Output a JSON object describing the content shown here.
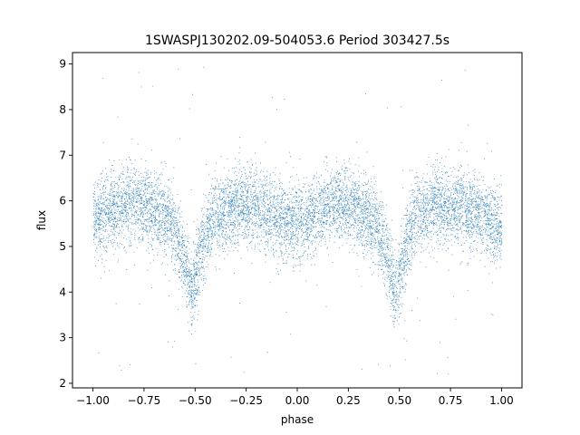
{
  "chart_data": {
    "type": "scatter",
    "title": "1SWASPJ130202.09-504053.6 Period 303427.5s",
    "xlabel": "phase",
    "ylabel": "flux",
    "xlim": [
      -1.1,
      1.1
    ],
    "ylim": [
      1.9,
      9.25
    ],
    "xticks": [
      -1.0,
      -0.75,
      -0.5,
      -0.25,
      0.0,
      0.25,
      0.5,
      0.75,
      1.0
    ],
    "xtick_labels": [
      "−1.00",
      "−0.75",
      "−0.50",
      "−0.25",
      "0.00",
      "0.25",
      "0.50",
      "0.75",
      "1.00"
    ],
    "yticks": [
      2,
      3,
      4,
      5,
      6,
      7,
      8,
      9
    ],
    "ytick_labels": [
      "2",
      "3",
      "4",
      "5",
      "6",
      "7",
      "8",
      "9"
    ],
    "grid": false,
    "point_color": "#1f77b4",
    "description_points": {
      "baseline_flux": 5.7,
      "eclipse_phases": [
        -0.52,
        0.48
      ],
      "eclipse_min_flux": 4.0,
      "phase_range": [
        -1.0,
        1.0
      ]
    },
    "series": [
      {
        "x": [
          -0.98,
          -0.9,
          -0.8,
          -0.7,
          -0.62,
          -0.56,
          -0.52,
          -0.48,
          -0.42,
          -0.3,
          -0.2,
          -0.1,
          0.0,
          0.1,
          0.2,
          0.3,
          0.38,
          0.44,
          0.48,
          0.52,
          0.58,
          0.7,
          0.8,
          0.9,
          0.98
        ],
        "y": [
          5.6,
          5.8,
          6.0,
          5.8,
          5.5,
          4.8,
          4.0,
          4.8,
          5.6,
          5.9,
          5.9,
          5.6,
          5.5,
          5.7,
          6.0,
          5.8,
          5.5,
          4.8,
          4.0,
          4.8,
          5.7,
          5.9,
          5.9,
          5.7,
          5.4
        ]
      }
    ]
  }
}
